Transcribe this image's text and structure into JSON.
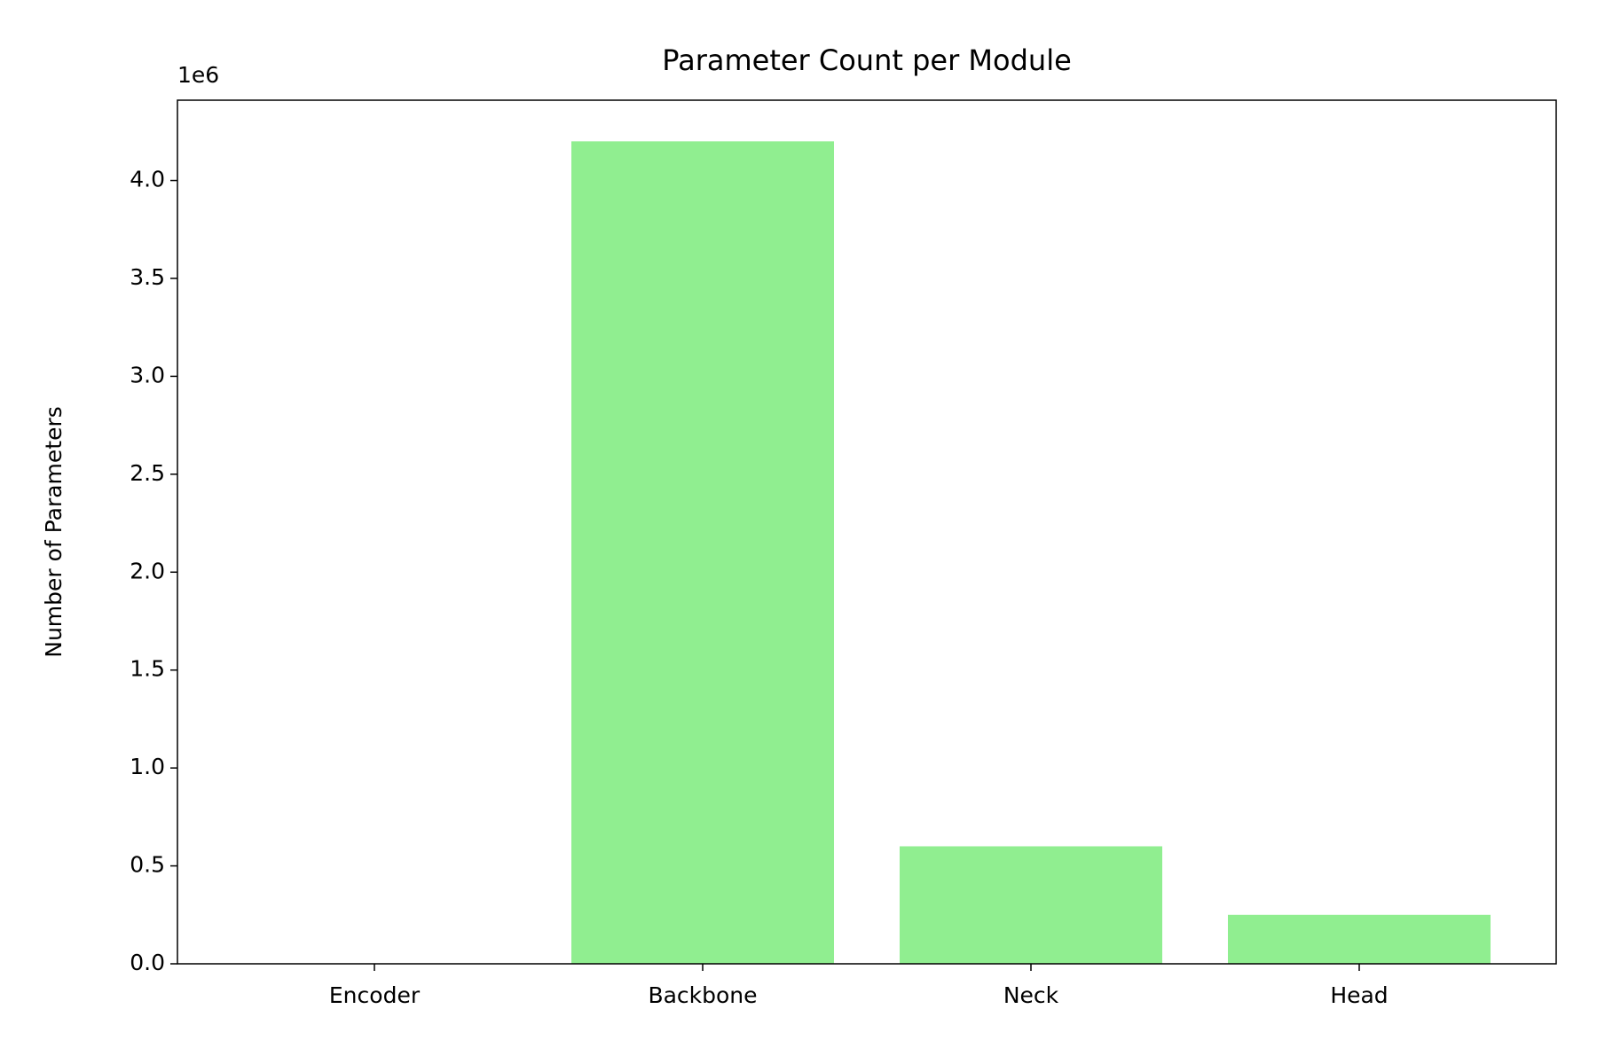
{
  "chart_data": {
    "type": "bar",
    "title": "Parameter Count per Module",
    "y_label": "Number of Parameters",
    "y_offset_label": "1e6",
    "categories": [
      "Encoder",
      "Backbone",
      "Neck",
      "Head"
    ],
    "values": [
      0,
      4.2,
      0.6,
      0.25
    ],
    "color": "#90ee90",
    "ylim": [
      0,
      4.41
    ],
    "yticks": [
      {
        "value": 0,
        "label": "0.0"
      },
      0.5,
      {
        "value": 1,
        "label": "1.0"
      },
      1.5,
      {
        "value": 2,
        "label": "2.0"
      },
      2.5,
      {
        "value": 3,
        "label": "3.0"
      },
      3.5,
      {
        "value": 4,
        "label": "4.0"
      }
    ],
    "grid": false
  }
}
